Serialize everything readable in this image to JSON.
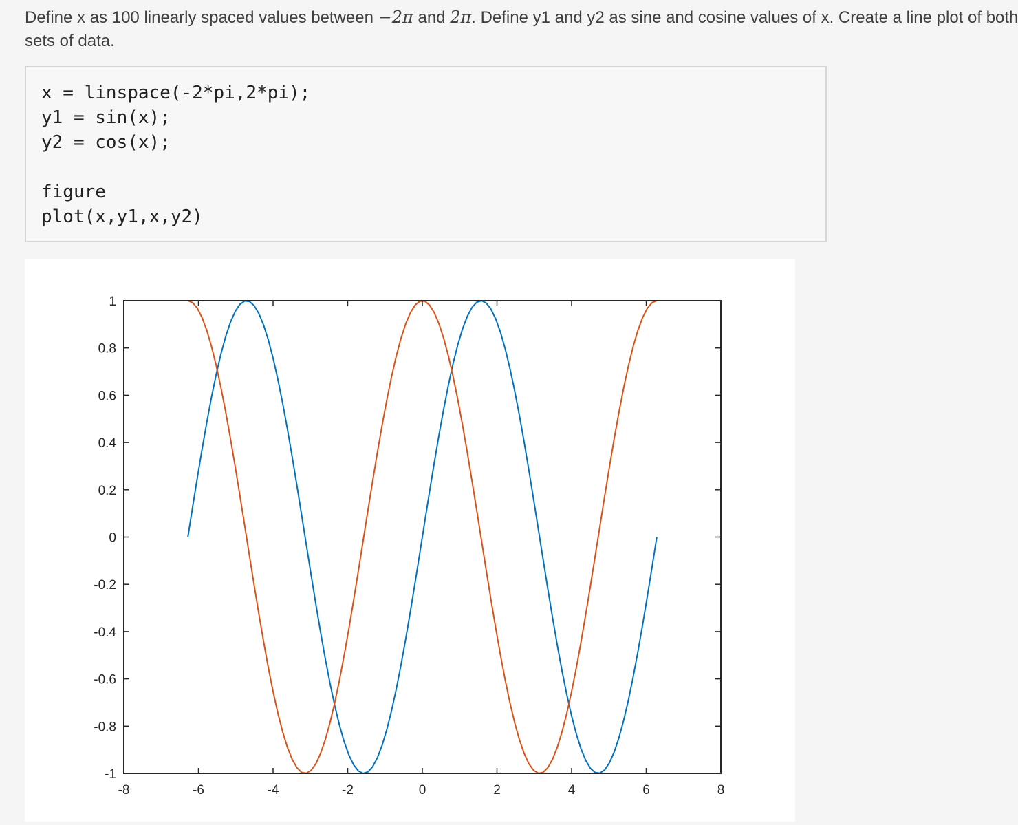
{
  "description": {
    "part1": "Define x as 100 linearly spaced values between ",
    "neg_two_pi": "−2π",
    "part2": " and ",
    "two_pi": "2π",
    "part3": ". Define y1 and y2 as sine and cosine values of x. Create a line plot of both",
    "line2": "sets of data."
  },
  "code": {
    "lines": [
      "x = linspace(-2*pi,2*pi);",
      "y1 = sin(x);",
      "y2 = cos(x);",
      "",
      "figure",
      "plot(x,y1,x,y2)"
    ]
  },
  "colors": {
    "series1": "#0072BD",
    "series2": "#D95319",
    "axis": "#262626"
  },
  "chart_data": {
    "type": "line",
    "xlim": [
      -8,
      8
    ],
    "ylim": [
      -1,
      1
    ],
    "x_ticks": [
      -8,
      -6,
      -4,
      -2,
      0,
      2,
      4,
      6,
      8
    ],
    "x_tick_labels": [
      "-8",
      "-6",
      "-4",
      "-2",
      "0",
      "2",
      "4",
      "6",
      "8"
    ],
    "y_ticks": [
      1,
      0.8,
      0.6,
      0.4,
      0.2,
      0,
      -0.2,
      -0.4,
      -0.6,
      -0.8,
      -1
    ],
    "y_tick_labels": [
      "1",
      "0.8",
      "0.6",
      "0.4",
      "0.2",
      "0",
      "-0.2",
      "-0.4",
      "-0.6",
      "-0.8",
      "-1"
    ],
    "grid": false,
    "x_range": [
      -6.2832,
      6.2832
    ],
    "num_points": 100,
    "series": [
      {
        "function": "sin",
        "color": "#0072BD"
      },
      {
        "function": "cos",
        "color": "#D95319"
      }
    ]
  }
}
